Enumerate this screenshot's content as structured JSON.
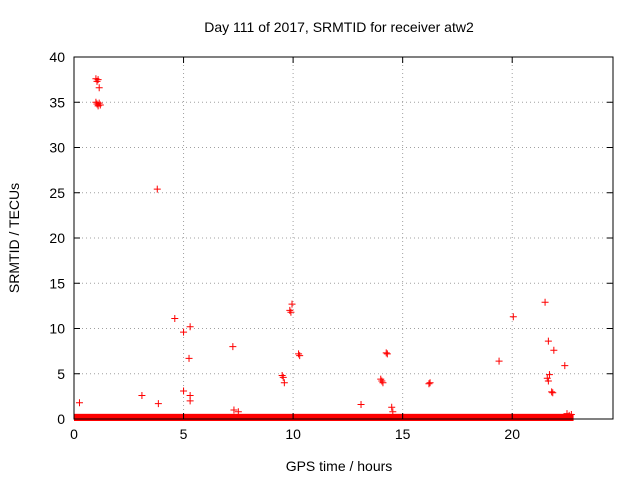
{
  "chart_data": {
    "type": "scatter",
    "title": "Day 111 of 2017, SRMTID for receiver atw2",
    "xlabel": "GPS time / hours",
    "ylabel": "SRMTID / TECUs",
    "xlim": [
      0,
      24.6
    ],
    "ylim": [
      0,
      40
    ],
    "xticks": [
      0,
      5,
      10,
      15,
      20
    ],
    "xtick_labels": [
      "0",
      "5",
      "10",
      "15",
      "20"
    ],
    "yticks": [
      0,
      5,
      10,
      15,
      20,
      25,
      30,
      35,
      40
    ],
    "ytick_labels": [
      "0",
      "5",
      "10",
      "15",
      "20",
      "25",
      "30",
      "35",
      "40"
    ],
    "grid": true,
    "legend": false,
    "marker": "plus",
    "color": "#ff0000",
    "baseline_band": {
      "x_start": 0.0,
      "x_end": 22.8,
      "y_min": 0.0,
      "y_max": 0.35
    },
    "points": [
      [
        0.25,
        1.8
      ],
      [
        1.0,
        37.6
      ],
      [
        1.05,
        37.3
      ],
      [
        1.1,
        37.5
      ],
      [
        1.15,
        36.6
      ],
      [
        1.0,
        35.0
      ],
      [
        1.05,
        34.8
      ],
      [
        1.1,
        34.6
      ],
      [
        1.15,
        34.9
      ],
      [
        1.2,
        34.7
      ],
      [
        3.1,
        2.6
      ],
      [
        3.8,
        25.4
      ],
      [
        3.85,
        1.7
      ],
      [
        4.6,
        11.1
      ],
      [
        5.0,
        9.6
      ],
      [
        5.0,
        3.1
      ],
      [
        5.25,
        6.7
      ],
      [
        5.3,
        10.2
      ],
      [
        5.3,
        2.6
      ],
      [
        5.3,
        2.0
      ],
      [
        7.25,
        8.0
      ],
      [
        7.3,
        1.0
      ],
      [
        7.5,
        0.8
      ],
      [
        9.5,
        4.8
      ],
      [
        9.55,
        4.6
      ],
      [
        9.6,
        4.0
      ],
      [
        9.85,
        12.0
      ],
      [
        9.9,
        11.8
      ],
      [
        9.95,
        12.7
      ],
      [
        10.25,
        7.2
      ],
      [
        10.3,
        7.0
      ],
      [
        13.1,
        1.6
      ],
      [
        14.0,
        4.4
      ],
      [
        14.05,
        4.2
      ],
      [
        14.1,
        4.0
      ],
      [
        14.25,
        7.3
      ],
      [
        14.3,
        7.2
      ],
      [
        14.5,
        1.3
      ],
      [
        14.55,
        0.8
      ],
      [
        16.2,
        3.9
      ],
      [
        16.25,
        4.0
      ],
      [
        19.4,
        6.4
      ],
      [
        20.05,
        11.3
      ],
      [
        21.5,
        12.9
      ],
      [
        21.6,
        4.5
      ],
      [
        21.65,
        4.2
      ],
      [
        21.7,
        4.9
      ],
      [
        21.65,
        8.6
      ],
      [
        21.8,
        3.0
      ],
      [
        21.85,
        2.9
      ],
      [
        21.9,
        7.6
      ],
      [
        22.4,
        5.9
      ],
      [
        22.5,
        0.6
      ],
      [
        22.6,
        0.4
      ],
      [
        22.7,
        0.5
      ]
    ]
  }
}
